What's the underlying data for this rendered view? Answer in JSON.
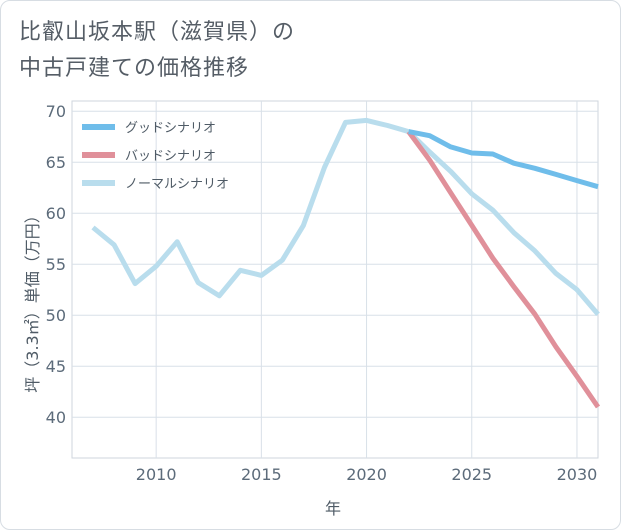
{
  "title_lines": [
    "比叡山坂本駅（滋賀県）の",
    "中古戸建ての価格推移"
  ],
  "chart_data": {
    "type": "line",
    "xlabel": "年",
    "ylabel": "坪（3.3㎡）単価（万円）",
    "xlim": [
      2006,
      2031
    ],
    "ylim": [
      36,
      71
    ],
    "xticks": [
      2010,
      2015,
      2020,
      2025,
      2030
    ],
    "yticks": [
      40,
      45,
      50,
      55,
      60,
      65,
      70
    ],
    "grid": true,
    "legend_position": "top-left",
    "series": [
      {
        "name": "グッドシナリオ",
        "color": "#6fbdea",
        "x": [
          2022,
          2023,
          2024,
          2025,
          2026,
          2027,
          2028,
          2029,
          2030,
          2031
        ],
        "y": [
          68.0,
          67.6,
          66.5,
          65.9,
          65.8,
          64.9,
          64.4,
          63.8,
          63.2,
          62.6
        ]
      },
      {
        "name": "バッドシナリオ",
        "color": "#e0909a",
        "x": [
          2022,
          2023,
          2024,
          2025,
          2026,
          2027,
          2028,
          2029,
          2030,
          2031
        ],
        "y": [
          68.0,
          65.2,
          62.0,
          58.8,
          55.6,
          52.8,
          50.1,
          46.9,
          44.0,
          41.0
        ]
      },
      {
        "name": "ノーマルシナリオ",
        "color": "#b9dded",
        "x": [
          2007,
          2008,
          2009,
          2010,
          2011,
          2012,
          2013,
          2014,
          2015,
          2016,
          2017,
          2018,
          2019,
          2020,
          2021,
          2022,
          2023,
          2024,
          2025,
          2026,
          2027,
          2028,
          2029,
          2030,
          2031
        ],
        "y": [
          58.6,
          56.9,
          53.1,
          54.8,
          57.2,
          53.2,
          51.9,
          54.4,
          53.9,
          55.4,
          58.8,
          64.5,
          68.9,
          69.1,
          68.6,
          68.0,
          66.0,
          64.1,
          61.9,
          60.3,
          58.1,
          56.3,
          54.1,
          52.5,
          50.1
        ]
      }
    ]
  }
}
